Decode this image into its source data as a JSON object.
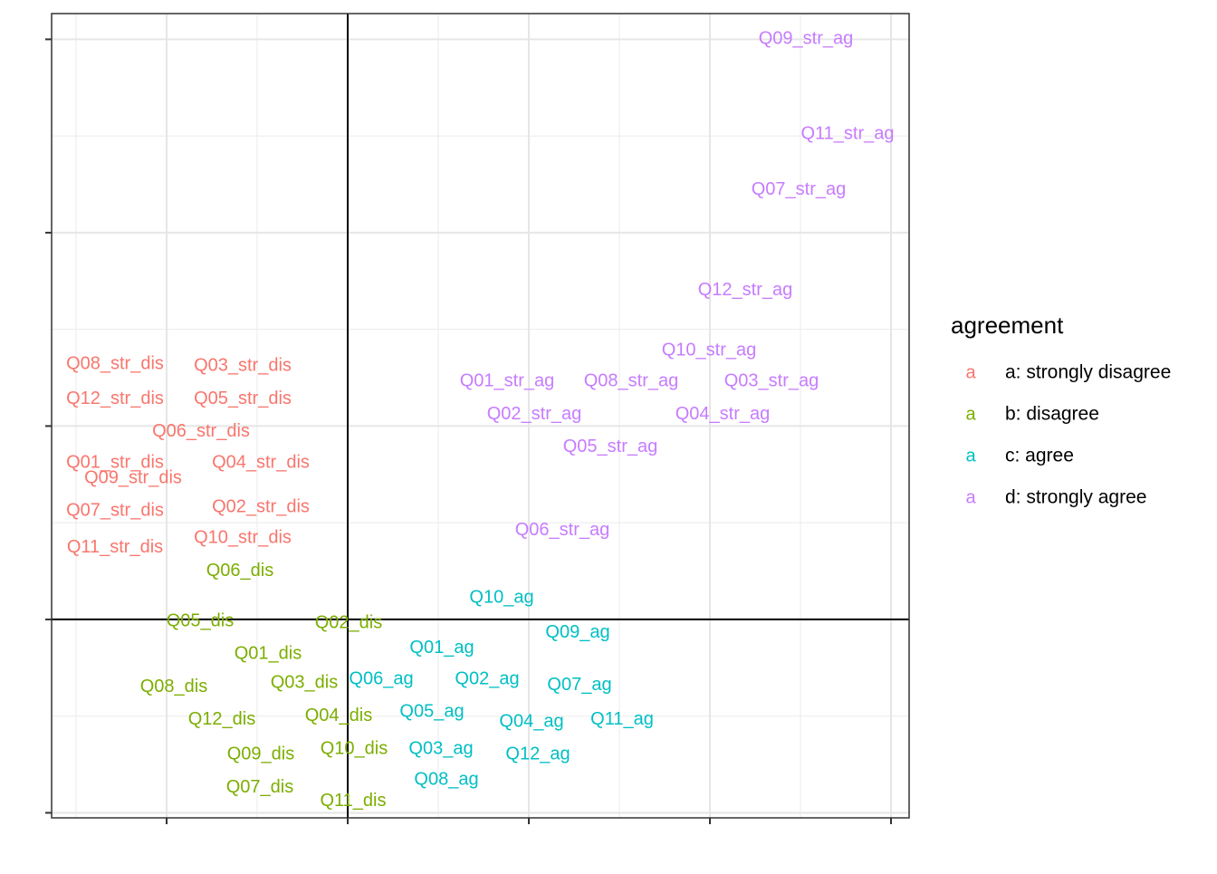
{
  "chart_data": {
    "type": "text-scatter",
    "xlim": [
      -1.635,
      3.1
    ],
    "ylim": [
      -1.026,
      3.133
    ],
    "xticks": [
      -1,
      0,
      1,
      2,
      3
    ],
    "yticks": [
      -1,
      0,
      1,
      2,
      3
    ],
    "grid": true,
    "zero_lines": true,
    "legend_title": "agreement",
    "legend_key_glyph": "a",
    "legend_position": "right",
    "series": [
      {
        "name": "a: strongly disagree",
        "color": "#F8766D",
        "labels": [
          "Q01_str_dis",
          "Q02_str_dis",
          "Q03_str_dis",
          "Q04_str_dis",
          "Q05_str_dis",
          "Q06_str_dis",
          "Q07_str_dis",
          "Q08_str_dis",
          "Q09_str_dis",
          "Q10_str_dis",
          "Q11_str_dis",
          "Q12_str_dis"
        ],
        "x": [
          -1.285,
          -0.48,
          -0.58,
          -0.48,
          -0.58,
          -0.81,
          -1.285,
          -1.285,
          -1.185,
          -0.58,
          -1.285,
          -1.285
        ],
        "y": [
          0.81,
          0.58,
          1.31,
          0.81,
          1.14,
          0.97,
          0.56,
          1.32,
          0.73,
          0.42,
          0.37,
          1.14
        ]
      },
      {
        "name": "b: disagree",
        "color": "#7CAE00",
        "labels": [
          "Q01_dis",
          "Q02_dis",
          "Q03_dis",
          "Q04_dis",
          "Q05_dis",
          "Q06_dis",
          "Q07_dis",
          "Q08_dis",
          "Q09_dis",
          "Q10_dis",
          "Q11_dis",
          "Q12_dis"
        ],
        "x": [
          -0.44,
          0.005,
          -0.24,
          -0.05,
          -0.815,
          -0.595,
          -0.485,
          -0.96,
          -0.48,
          0.035,
          0.03,
          -0.695
        ],
        "y": [
          -0.18,
          -0.02,
          -0.33,
          -0.5,
          -0.01,
          0.25,
          -0.87,
          -0.35,
          -0.7,
          -0.67,
          -0.94,
          -0.52
        ]
      },
      {
        "name": "c: agree",
        "color": "#00BFC4",
        "labels": [
          "Q01_ag",
          "Q02_ag",
          "Q03_ag",
          "Q04_ag",
          "Q05_ag",
          "Q06_ag",
          "Q07_ag",
          "Q08_ag",
          "Q09_ag",
          "Q10_ag",
          "Q11_ag",
          "Q12_ag"
        ],
        "x": [
          0.52,
          0.77,
          0.515,
          1.015,
          0.465,
          0.185,
          1.28,
          0.545,
          1.27,
          0.85,
          1.515,
          1.05
        ],
        "y": [
          -0.15,
          -0.31,
          -0.67,
          -0.53,
          -0.48,
          -0.31,
          -0.34,
          -0.83,
          -0.07,
          0.11,
          -0.52,
          -0.7
        ]
      },
      {
        "name": "d: strongly agree",
        "color": "#C77CFF",
        "labels": [
          "Q01_str_ag",
          "Q02_str_ag",
          "Q03_str_ag",
          "Q04_str_ag",
          "Q05_str_ag",
          "Q06_str_ag",
          "Q07_str_ag",
          "Q08_str_ag",
          "Q09_str_ag",
          "Q10_str_ag",
          "Q11_str_ag",
          "Q12_str_ag"
        ],
        "x": [
          0.88,
          1.03,
          2.34,
          2.07,
          1.45,
          1.185,
          2.49,
          1.565,
          2.53,
          1.995,
          2.76,
          2.195
        ],
        "y": [
          1.23,
          1.06,
          1.23,
          1.06,
          0.89,
          0.46,
          2.22,
          1.23,
          3.0,
          1.39,
          2.51,
          1.7
        ]
      }
    ]
  }
}
